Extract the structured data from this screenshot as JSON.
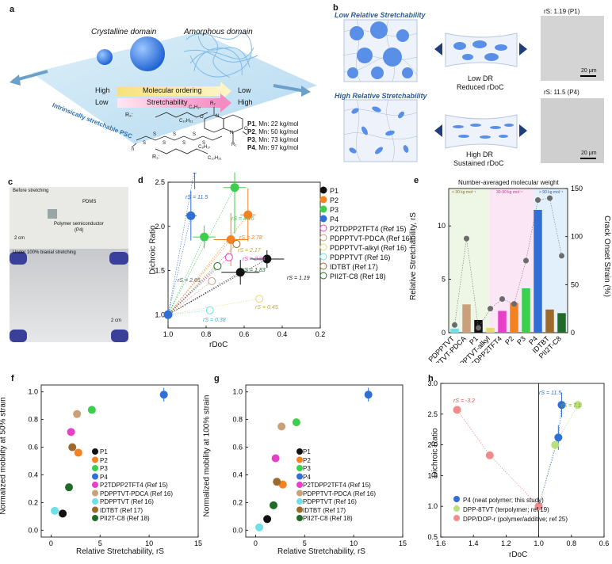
{
  "panels": {
    "a": {
      "letter": "a",
      "crystalline": "Crystalline domain",
      "amorphous": "Amorphous domain",
      "high1": "High",
      "low1": "Low",
      "ordering": "Molecular ordering",
      "low2": "Low",
      "high2": "High",
      "stretchability": "Stretchability",
      "isp": "Intrinsically stretchable PSC",
      "r2": "R₂:",
      "r1": "R₁:",
      "c8h17_a": "C₈H₁₇",
      "c10h21_a": "C₁₀H₂₁",
      "c8h17_b": "C₈H₁₇",
      "c10h21_b": "C₁₀H₂₁",
      "ring_labels": [
        "R₂",
        "O",
        "N",
        "N",
        "O",
        "R₁",
        "S",
        "S",
        "S",
        "S",
        "S",
        "S",
        "S",
        "n"
      ],
      "polymers": [
        {
          "id": "P1",
          "mn": ", Mn: 22 kg/mol"
        },
        {
          "id": "P2",
          "mn": ", Mn: 50 kg/mol"
        },
        {
          "id": "P3",
          "mn": ", Mn: 73 kg/mol"
        },
        {
          "id": "P4",
          "mn": ", Mn: 97 kg/mol"
        }
      ]
    },
    "b": {
      "letter": "b",
      "low_title": "Low Relative Stretchability",
      "high_title": "High Relative Stretchability",
      "low_dr": "Low DR",
      "reduced": "Reduced rDoC",
      "high_dr": "High DR",
      "sustained": "Sustained rDoC",
      "rs1": "rS: 1.19 (P1)",
      "rs2": "rS: 11.5 (P4)",
      "scale1": "20 μm",
      "scale2": "20 μm"
    },
    "c": {
      "letter": "c",
      "before": "Before stretching",
      "pdms": "PDMS",
      "semi": "Polymer semiconductor",
      "semi2": "(P4)",
      "scale1": "2 cm",
      "under": "Under 100% biaxial stretching",
      "scale2": "2 cm"
    },
    "d": {
      "letter": "d",
      "xlabel": "rDoC",
      "ylabel": "Dichroic Ratio",
      "annotations": [
        "rS = 11.5",
        "rS = 4.16",
        "rS = 2.78",
        "rS = 2.17",
        "rS = 2.04",
        "rS = 1.83",
        "rS = 2.65",
        "rS = 1.19",
        "rS = 0.45",
        "rS = 0.38"
      ]
    },
    "e": {
      "letter": "e",
      "top_title": "Number-averaged molecular weight",
      "band1": "< 30 kg mol⁻¹",
      "band2": "30-90 kg mol⁻¹",
      "band3": "> 90 kg mol⁻¹",
      "ylabel": "Relative Stretchability, rS",
      "y2label": "Crack Onset Strain (%)"
    },
    "f": {
      "letter": "f",
      "xlabel": "Relative Stretchability, rS",
      "ylabel": "Normalized mobility at 50% strain"
    },
    "g": {
      "letter": "g",
      "xlabel": "Relative Stretchability, rS",
      "ylabel": "Normalized mobility at 100% strain"
    },
    "h": {
      "letter": "h",
      "xlabel": "rDoC",
      "ylabel": "Dichroic Ratio",
      "annotations": [
        "rS = -3.2",
        "rS = 11.5",
        "rS = 7.1"
      ],
      "legend": [
        {
          "label": "P4 (neat polymer; this study)",
          "color": "#2f6fd6"
        },
        {
          "label": "DPP-8TVT (terpolymer; ref 19)",
          "color": "#b9e07a"
        },
        {
          "label": "DPP/DOP-r (polymer/additive; ref 25)",
          "color": "#f28b8b"
        }
      ]
    }
  },
  "legend_dfg": [
    {
      "label": "P1",
      "color": "#111111",
      "hollow": false
    },
    {
      "label": "P2",
      "color": "#f58220",
      "hollow": false
    },
    {
      "label": "P3",
      "color": "#3ccf4e",
      "hollow": false
    },
    {
      "label": "P4",
      "color": "#2f6fd6",
      "hollow": false
    },
    {
      "label": "P2TDPP2TFT4 (Ref 15)",
      "color": "#e83fc8",
      "hollow": false
    },
    {
      "label": "PDPPTVT-PDCA (Ref 16)",
      "color": "#c9a07a",
      "hollow": false
    },
    {
      "label": "PDPPTVT-alkyl (Ref 16)",
      "color": "#e8d870",
      "hollow": false
    },
    {
      "label": "PDPPTVT (Ref 16)",
      "color": "#6fe0e8",
      "hollow": false
    },
    {
      "label": "IDTBT (Ref 17)",
      "color": "#9b6a2c",
      "hollow": false
    },
    {
      "label": "PII2T-C8 (Ref 18)",
      "color": "#1f6b27",
      "hollow": false
    }
  ],
  "chart_data": [
    {
      "panel": "d",
      "type": "scatter",
      "xlabel": "rDoC",
      "ylabel": "Dichroic Ratio",
      "xlim": [
        1.0,
        0.2
      ],
      "ylim": [
        0.85,
        2.5
      ],
      "x_ticks": [
        "1.0",
        "0.8",
        "0.6",
        "0.4",
        "0.2"
      ],
      "y_ticks": [
        "1.0",
        "1.5",
        "2.0",
        "2.5"
      ],
      "points": [
        {
          "name": "P1",
          "x": 0.62,
          "y": 1.48,
          "ex": 0.1,
          "ey": 0.14
        },
        {
          "name": "P1",
          "x": 0.48,
          "y": 1.63,
          "ex": 0.09,
          "ey": 0.1
        },
        {
          "name": "P2",
          "x": 0.67,
          "y": 1.85,
          "ex": 0.09,
          "ey": 0.3
        },
        {
          "name": "P2",
          "x": 0.58,
          "y": 2.13,
          "ex": 0.04,
          "ey": 0.3
        },
        {
          "name": "P3",
          "x": 0.81,
          "y": 1.88,
          "ex": 0.06,
          "ey": 0.13
        },
        {
          "name": "P3",
          "x": 0.65,
          "y": 2.44,
          "ex": 0.06,
          "ey": 0.52
        },
        {
          "name": "P4",
          "x": 0.88,
          "y": 2.12,
          "ex": 0.03,
          "ey": 0.28
        },
        {
          "name": "P4",
          "x": 0.86,
          "y": 2.65,
          "ex": 0.04,
          "ey": 0.23
        },
        {
          "name": "P2TDPP2TFT4 (Ref 15)",
          "x": 0.68,
          "y": 1.65
        },
        {
          "name": "PDPPTVT-PDCA (Ref 16)",
          "x": 0.77,
          "y": 1.38
        },
        {
          "name": "PDPPTVT-alkyl (Ref 16)",
          "x": 0.52,
          "y": 1.18
        },
        {
          "name": "PDPPTVT (Ref 16)",
          "x": 0.78,
          "y": 1.05
        },
        {
          "name": "IDTBT (Ref 17)",
          "x": 0.64,
          "y": 1.8
        },
        {
          "name": "PII2T-C8 (Ref 18)",
          "x": 0.74,
          "y": 1.55
        },
        {
          "name": "origin",
          "x": 1.0,
          "y": 1.0
        }
      ]
    },
    {
      "panel": "e",
      "type": "bar",
      "ylabel": "Relative Stretchability, rS",
      "y2label": "Crack Onset Strain (%)",
      "ylim": [
        0,
        13.5
      ],
      "y2lim": [
        0,
        150
      ],
      "y_ticks": [
        "0",
        "5",
        "10"
      ],
      "y2_ticks": [
        "0",
        "50",
        "100",
        "150"
      ],
      "categories": [
        "PDPPTVT",
        "PDPPTVT-PDCA",
        "P1",
        "PDPPTVT-alkyl",
        "P2TDPP2TFT4",
        "P2",
        "P3",
        "P4",
        "IDTBT",
        "PII2T-C8"
      ],
      "values": [
        0.38,
        2.65,
        1.19,
        0.45,
        2.04,
        2.78,
        4.16,
        11.5,
        2.17,
        1.83
      ],
      "crack_onset_strain": [
        8,
        98,
        5,
        25,
        35,
        30,
        75,
        138,
        140,
        80
      ],
      "colors": [
        "#6fe0e8",
        "#c9a07a",
        "#111111",
        "#e8d870",
        "#e83fc8",
        "#f58220",
        "#3ccf4e",
        "#2f6fd6",
        "#9b6a2c",
        "#1f6b27"
      ]
    },
    {
      "panel": "f",
      "type": "scatter",
      "xlabel": "Relative Stretchability, rS",
      "ylabel": "Normalized mobility at 50% strain",
      "xlim": [
        -1,
        15
      ],
      "ylim": [
        -0.05,
        1.05
      ],
      "x_ticks": [
        "0",
        "5",
        "10",
        "15"
      ],
      "y_ticks": [
        "0.0",
        "0.2",
        "0.4",
        "0.6",
        "0.8",
        "1.0"
      ],
      "points": [
        {
          "name": "P1",
          "x": 1.19,
          "y": 0.12
        },
        {
          "name": "P2",
          "x": 2.78,
          "y": 0.56
        },
        {
          "name": "P3",
          "x": 4.16,
          "y": 0.87
        },
        {
          "name": "P4",
          "x": 11.5,
          "y": 0.98
        },
        {
          "name": "P2TDPP2TFT4 (Ref 15)",
          "x": 2.04,
          "y": 0.71
        },
        {
          "name": "PDPPTVT-PDCA (Ref 16)",
          "x": 2.65,
          "y": 0.84
        },
        {
          "name": "PDPPTVT (Ref 16)",
          "x": 0.38,
          "y": 0.14
        },
        {
          "name": "IDTBT (Ref 17)",
          "x": 2.17,
          "y": 0.6
        },
        {
          "name": "PII2T-C8 (Ref 18)",
          "x": 1.83,
          "y": 0.31
        }
      ]
    },
    {
      "panel": "g",
      "type": "scatter",
      "xlabel": "Relative Stretchability, rS",
      "ylabel": "Normalized mobility at 100% strain",
      "xlim": [
        -1,
        15
      ],
      "ylim": [
        -0.05,
        1.05
      ],
      "x_ticks": [
        "0",
        "5",
        "10",
        "15"
      ],
      "y_ticks": [
        "0.0",
        "0.2",
        "0.4",
        "0.6",
        "0.8",
        "1.0"
      ],
      "points": [
        {
          "name": "P1",
          "x": 1.19,
          "y": 0.08
        },
        {
          "name": "P2",
          "x": 2.78,
          "y": 0.33
        },
        {
          "name": "P3",
          "x": 4.16,
          "y": 0.78
        },
        {
          "name": "P4",
          "x": 11.5,
          "y": 0.98
        },
        {
          "name": "P2TDPP2TFT4 (Ref 15)",
          "x": 2.04,
          "y": 0.52
        },
        {
          "name": "PDPPTVT-PDCA (Ref 16)",
          "x": 2.65,
          "y": 0.75
        },
        {
          "name": "PDPPTVT (Ref 16)",
          "x": 0.38,
          "y": 0.02
        },
        {
          "name": "IDTBT (Ref 17)",
          "x": 2.17,
          "y": 0.35
        },
        {
          "name": "PII2T-C8 (Ref 18)",
          "x": 1.83,
          "y": 0.18
        }
      ]
    },
    {
      "panel": "h",
      "type": "scatter",
      "xlabel": "rDoC",
      "ylabel": "Dichroic Ratio",
      "xlim": [
        1.6,
        0.6
      ],
      "ylim": [
        0.5,
        3.0
      ],
      "x_ticks": [
        "1.6",
        "1.4",
        "1.2",
        "1.0",
        "0.8",
        "0.6"
      ],
      "y_ticks": [
        "0.5",
        "1.0",
        "1.5",
        "2.0",
        "2.5",
        "3.0"
      ],
      "series": [
        {
          "name": "P4 (neat polymer; this study)",
          "points": [
            [
              1.0,
              1.0
            ],
            [
              0.88,
              2.12
            ],
            [
              0.86,
              2.65
            ]
          ]
        },
        {
          "name": "DPP-8TVT (terpolymer; ref 19)",
          "points": [
            [
              1.0,
              1.0
            ],
            [
              0.9,
              2.0
            ],
            [
              0.76,
              2.65
            ]
          ]
        },
        {
          "name": "DPP/DOP-r (polymer/additive; ref 25)",
          "points": [
            [
              1.0,
              1.0
            ],
            [
              1.3,
              1.83
            ],
            [
              1.5,
              2.57
            ]
          ]
        }
      ]
    }
  ]
}
